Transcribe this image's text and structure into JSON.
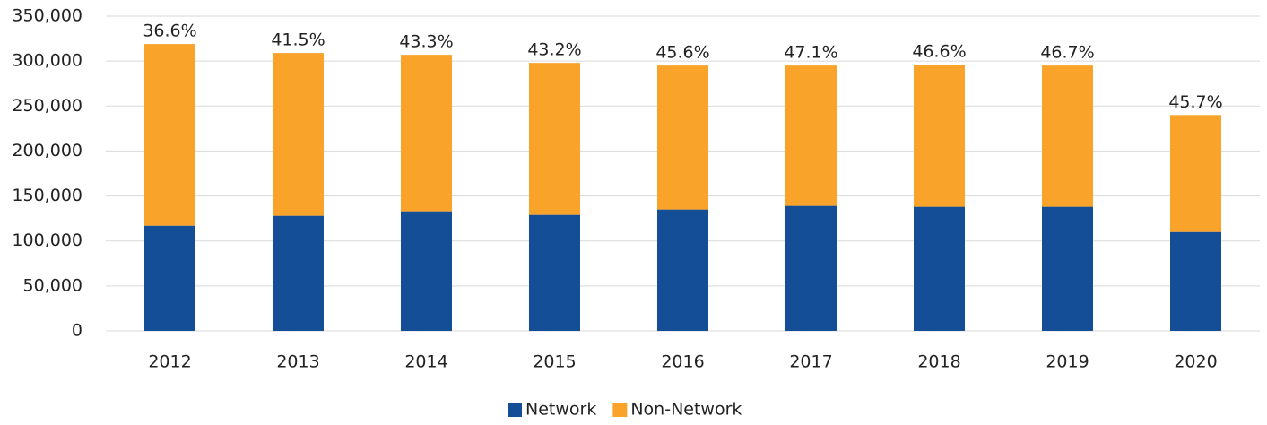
{
  "chart_data": {
    "type": "stacked_bar",
    "categories": [
      "2012",
      "2013",
      "2014",
      "2015",
      "2016",
      "2017",
      "2018",
      "2019",
      "2020"
    ],
    "series": [
      {
        "name": "Network",
        "color": "#134e96",
        "values": [
          117000,
          128000,
          133000,
          129000,
          135000,
          139000,
          138000,
          138000,
          110000
        ]
      },
      {
        "name": "Non-Network",
        "color": "#f9a32a",
        "values": [
          202000,
          181000,
          174000,
          169000,
          160000,
          156000,
          158000,
          157000,
          130000
        ]
      }
    ],
    "annotations": [
      "36.6%",
      "41.5%",
      "43.3%",
      "43.2%",
      "45.6%",
      "47.1%",
      "46.6%",
      "46.7%",
      "45.7%"
    ],
    "ylim": [
      0,
      350000
    ],
    "yticks": [
      0,
      {
        "value": 50000,
        "label": "50,000"
      },
      {
        "value": 100000,
        "label": "100,000"
      },
      {
        "value": 150000,
        "label": "150,000"
      },
      {
        "value": 200000,
        "label": "200,000"
      },
      {
        "value": 250000,
        "label": "250,000"
      },
      {
        "value": 300000,
        "label": "300,000"
      },
      {
        "value": 350000,
        "label": "350,000"
      }
    ],
    "grid": true,
    "legend": "bottom"
  }
}
